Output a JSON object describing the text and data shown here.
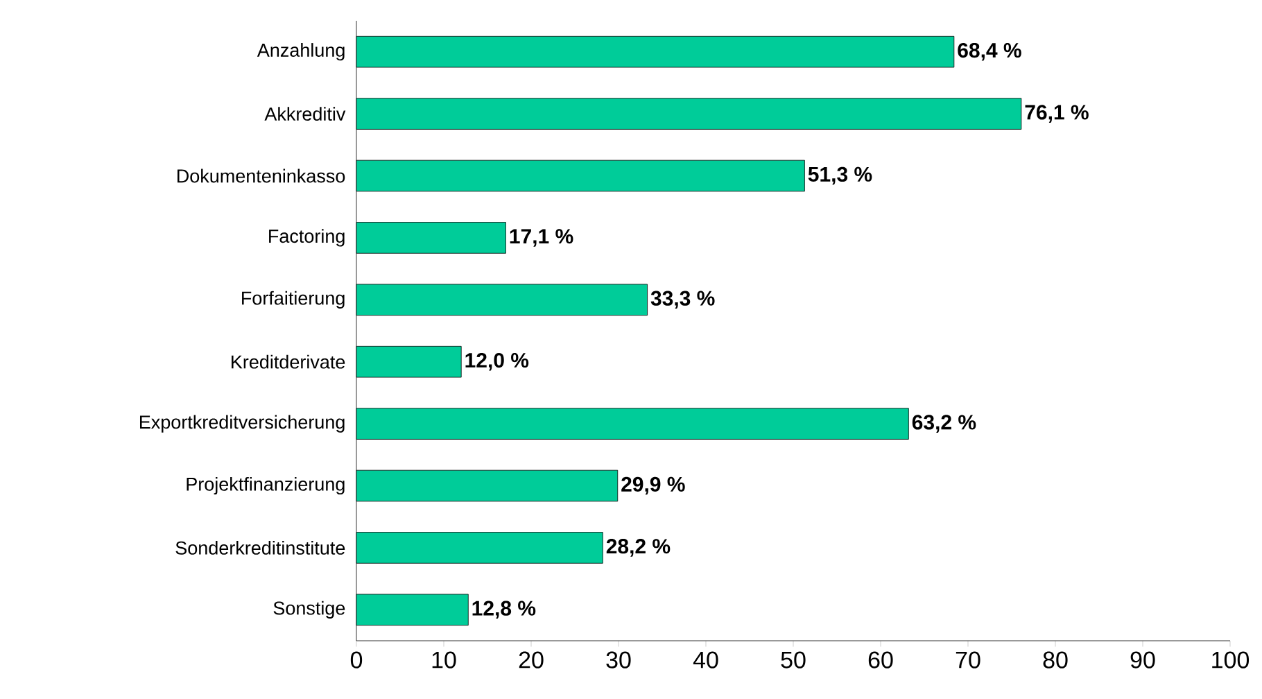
{
  "chart_data": {
    "type": "bar",
    "orientation": "horizontal",
    "categories": [
      "Anzahlung",
      "Akkreditiv",
      "Dokumenteninkasso",
      "Factoring",
      "Forfaitierung",
      "Kreditderivate",
      "Exportkreditversicherung",
      "Projektfinanzierung",
      "Sonderkreditinstitute",
      "Sonstige"
    ],
    "values": [
      68.4,
      76.1,
      51.3,
      17.1,
      33.3,
      12.0,
      63.2,
      29.9,
      28.2,
      12.8
    ],
    "value_labels": [
      "68,4 %",
      "76,1 %",
      "51,3 %",
      "17,1 %",
      "33,3 %",
      "12,0 %",
      "63,2 %",
      "29,9 %",
      "28,2 %",
      "12,8 %"
    ],
    "color": "#00cc99",
    "xlim": [
      0,
      100
    ],
    "xticks": [
      0,
      10,
      20,
      30,
      40,
      50,
      60,
      70,
      80,
      90,
      100
    ]
  }
}
